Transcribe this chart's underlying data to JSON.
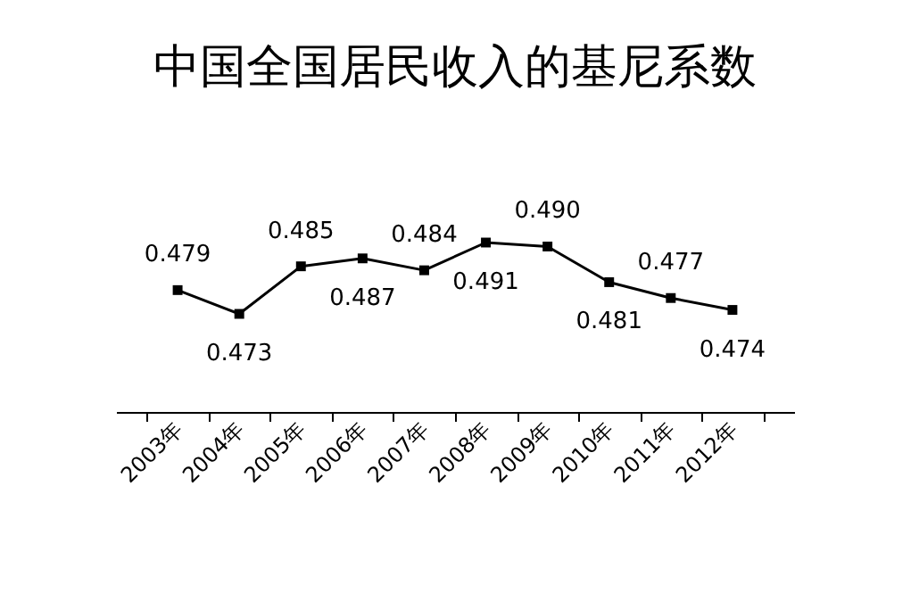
{
  "chart_data": {
    "type": "line",
    "title": "中国全国居民收入的基尼系数",
    "categories": [
      "2003年",
      "2004年",
      "2005年",
      "2006年",
      "2007年",
      "2008年",
      "2009年",
      "2010年",
      "2011年",
      "2012年"
    ],
    "series": [
      {
        "color": "#000000",
        "values": [
          0.479,
          0.473,
          0.485,
          0.487,
          0.484,
          0.491,
          0.49,
          0.481,
          0.477,
          0.474
        ],
        "value_labels": [
          "0.479",
          "0.473",
          "0.485",
          "0.487",
          "0.484",
          "0.491",
          "0.490",
          "0.481",
          "0.477",
          "0.474"
        ]
      }
    ],
    "tick_labels": "x",
    "marker": "square",
    "grid": false
  }
}
